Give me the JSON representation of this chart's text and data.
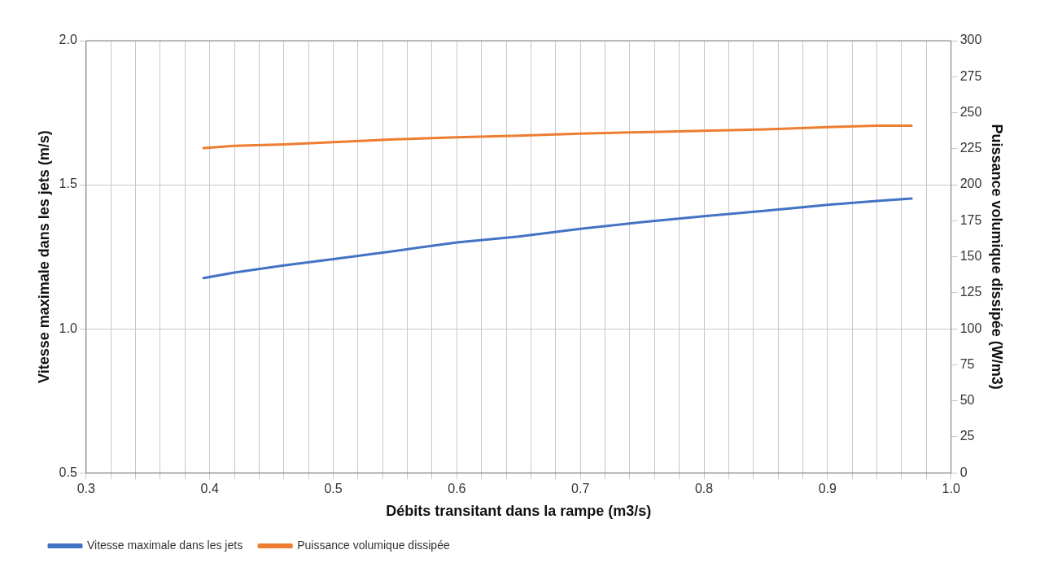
{
  "chart_data": {
    "type": "line",
    "xlabel": "Débits transitant dans la rampe (m3/s)",
    "ylabel": "Vitesse maximale dans les jets (m/s)",
    "y2label": "Puissance volumique dissipée (W/m3)",
    "x": [
      0.395,
      0.42,
      0.46,
      0.5,
      0.55,
      0.6,
      0.65,
      0.7,
      0.75,
      0.8,
      0.85,
      0.9,
      0.94,
      0.968
    ],
    "series": [
      {
        "name": "Vitesse maximale dans les jets",
        "color": "#4472c4",
        "values": [
          1.176,
          1.195,
          1.22,
          1.242,
          1.27,
          1.3,
          1.32,
          1.347,
          1.37,
          1.391,
          1.41,
          1.43,
          1.444,
          1.452
        ]
      },
      {
        "name": "Puissance volumique dissipée",
        "color": "#ed7d31",
        "axis": "y2",
        "values": [
          225.5,
          227,
          228,
          229.5,
          231.5,
          233,
          234,
          235.5,
          236.5,
          237.5,
          238.5,
          240,
          241,
          241
        ]
      }
    ],
    "xlim": [
      0.3,
      1.0
    ],
    "xticks": [
      0.3,
      {
        "value": 0.32,
        "label": null
      },
      {
        "value": 0.34,
        "label": null
      },
      {
        "value": 0.36,
        "label": null
      },
      {
        "value": 0.38,
        "label": null
      },
      0.4,
      {
        "value": 0.42,
        "label": null
      },
      {
        "value": 0.44,
        "label": null
      },
      {
        "value": 0.46,
        "label": null
      },
      {
        "value": 0.48,
        "label": null
      },
      0.5,
      {
        "value": 0.52,
        "label": null
      },
      {
        "value": 0.54,
        "label": null
      },
      {
        "value": 0.56,
        "label": null
      },
      {
        "value": 0.58,
        "label": null
      },
      0.6,
      {
        "value": 0.62,
        "label": null
      },
      {
        "value": 0.64,
        "label": null
      },
      {
        "value": 0.66,
        "label": null
      },
      {
        "value": 0.68,
        "label": null
      },
      0.7,
      {
        "value": 0.72,
        "label": null
      },
      {
        "value": 0.74,
        "label": null
      },
      {
        "value": 0.76,
        "label": null
      },
      {
        "value": 0.78,
        "label": null
      },
      0.8,
      {
        "value": 0.82,
        "label": null
      },
      {
        "value": 0.84,
        "label": null
      },
      {
        "value": 0.86,
        "label": null
      },
      {
        "value": 0.88,
        "label": null
      },
      0.9,
      {
        "value": 0.92,
        "label": null
      },
      {
        "value": 0.94,
        "label": null
      },
      {
        "value": 0.96,
        "label": null
      },
      {
        "value": 0.98,
        "label": null
      },
      {
        "value": 1.0,
        "label": "1.0"
      }
    ],
    "ylim": [
      0.5,
      2.0
    ],
    "yticks": [
      0.5,
      {
        "value": 1.0,
        "label": "1.0"
      },
      1.5,
      {
        "value": 2.0,
        "label": "2.0"
      }
    ],
    "y2lim": [
      0,
      300
    ],
    "y2ticks": [
      0,
      25,
      50,
      75,
      100,
      125,
      150,
      175,
      200,
      225,
      250,
      275,
      300
    ],
    "grid": true,
    "legend": "bottom left",
    "marker": "none",
    "line_style": "solid"
  }
}
